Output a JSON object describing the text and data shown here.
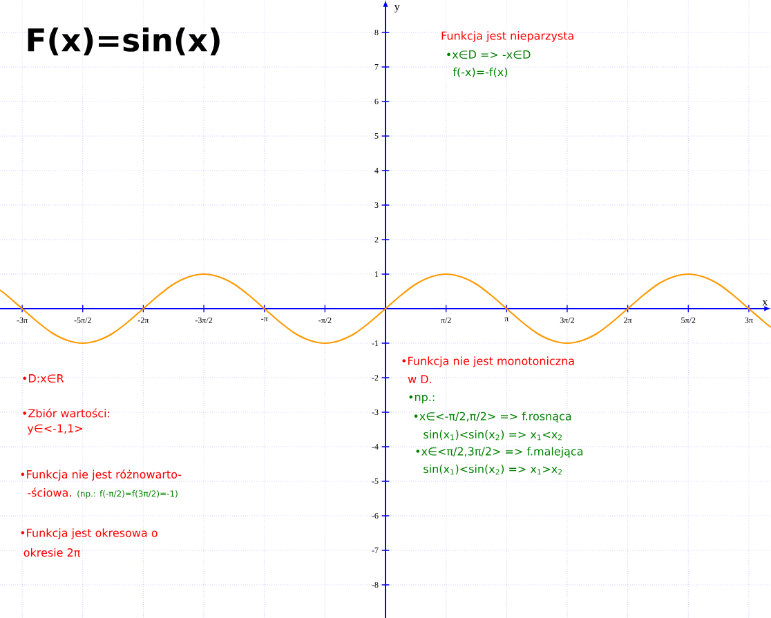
{
  "chart_data": {
    "type": "line",
    "title": "F(x)=sin(x)",
    "xlabel": "x",
    "ylabel": "y",
    "annotations": [
      "•D:x∈R",
      "•Zbiór wartości:",
      "y∈<-1,1>",
      "•Funkcja nie jest różnowarto-",
      "-ściowa.",
      "(np.: f(-π/2)=f(3π/2)=-1)",
      "•Funkcja jest okresowa o",
      "okresie 2π",
      "Funkcja jest nieparzysta",
      "•x∈D => -x∈D",
      "f(-x)=-f(x)",
      "•Funkcja nie jest monotoniczna",
      "w D.",
      "•np.:",
      "•x∈<-π/2,π/2> => f.rosnąca",
      "sin(x$_{1}$)<sin(x$_{2}$) => x$_{1}$<x$_{2}$",
      "•x∈<π/2,3π/2> => f.malejąca",
      "sin(x$_{1}$)<sin(x$_{2}$) => x$_{1}$>x$_{2}$"
    ],
    "x": [
      -10,
      -9.8175,
      -9.4248,
      -9.0321,
      -8.6394,
      -8.2467,
      -7.854,
      -7.4613,
      -7.0686,
      -6.6759,
      -6.2832,
      -5.8905,
      -5.4978,
      -5.1051,
      -4.7124,
      -4.3197,
      -3.927,
      -3.5343,
      -3.1416,
      -2.7489,
      -2.3562,
      -1.9635,
      -1.5708,
      -1.1781,
      -0.7854,
      -0.3927,
      0,
      0.3927,
      0.7854,
      1.1781,
      1.5708,
      1.9635,
      2.3562,
      2.7489,
      3.1416,
      3.5343,
      3.927,
      4.3197,
      4.7124,
      5.1051,
      5.4978,
      5.8905,
      6.2832,
      6.6759,
      7.0686,
      7.4613,
      7.854,
      8.2467,
      8.6394,
      9.0321,
      9.4248,
      9.8175,
      10
    ],
    "series": [
      {
        "color": "#ff9900",
        "values": [
          0.54,
          0.38,
          0,
          -0.38,
          -0.71,
          -0.92,
          -1,
          -0.92,
          -0.71,
          -0.38,
          0,
          0.38,
          0.71,
          0.92,
          1,
          0.92,
          0.71,
          0.38,
          0,
          -0.38,
          -0.71,
          -0.92,
          -1,
          -0.92,
          -0.71,
          -0.38,
          0,
          0.38,
          0.71,
          0.92,
          1,
          0.92,
          0.71,
          0.38,
          0,
          -0.38,
          -0.71,
          -0.92,
          -1,
          -0.92,
          -0.71,
          -0.38,
          0,
          0.38,
          0.71,
          0.92,
          1,
          0.92,
          0.71,
          0.38,
          0,
          -0.38,
          -0.54
        ]
      }
    ],
    "xlim": [
      -10,
      10
    ],
    "ylim": [
      -8.96,
      8.94
    ],
    "xticks": [
      {
        "value": -9.4248,
        "label": "-3π"
      },
      {
        "value": -7.854,
        "label": "-5π/2"
      },
      {
        "value": -6.2832,
        "label": "-2π"
      },
      {
        "value": -4.7124,
        "label": "-3π/2"
      },
      {
        "value": -3.1416,
        "label": "-π"
      },
      {
        "value": -1.5708,
        "label": "-π/2"
      },
      {
        "value": 1.5708,
        "label": "π/2"
      },
      {
        "value": 3.1416,
        "label": "π"
      },
      {
        "value": 4.7124,
        "label": "3π/2"
      },
      {
        "value": 6.2832,
        "label": "2π"
      },
      {
        "value": 7.854,
        "label": "5π/2"
      },
      {
        "value": 9.4248,
        "label": "3π"
      }
    ],
    "yticks": [
      -8,
      -7,
      -6,
      -5,
      -4,
      -3,
      -2,
      -1,
      1,
      2,
      3,
      4,
      5,
      6,
      7,
      8
    ],
    "grid": true
  }
}
